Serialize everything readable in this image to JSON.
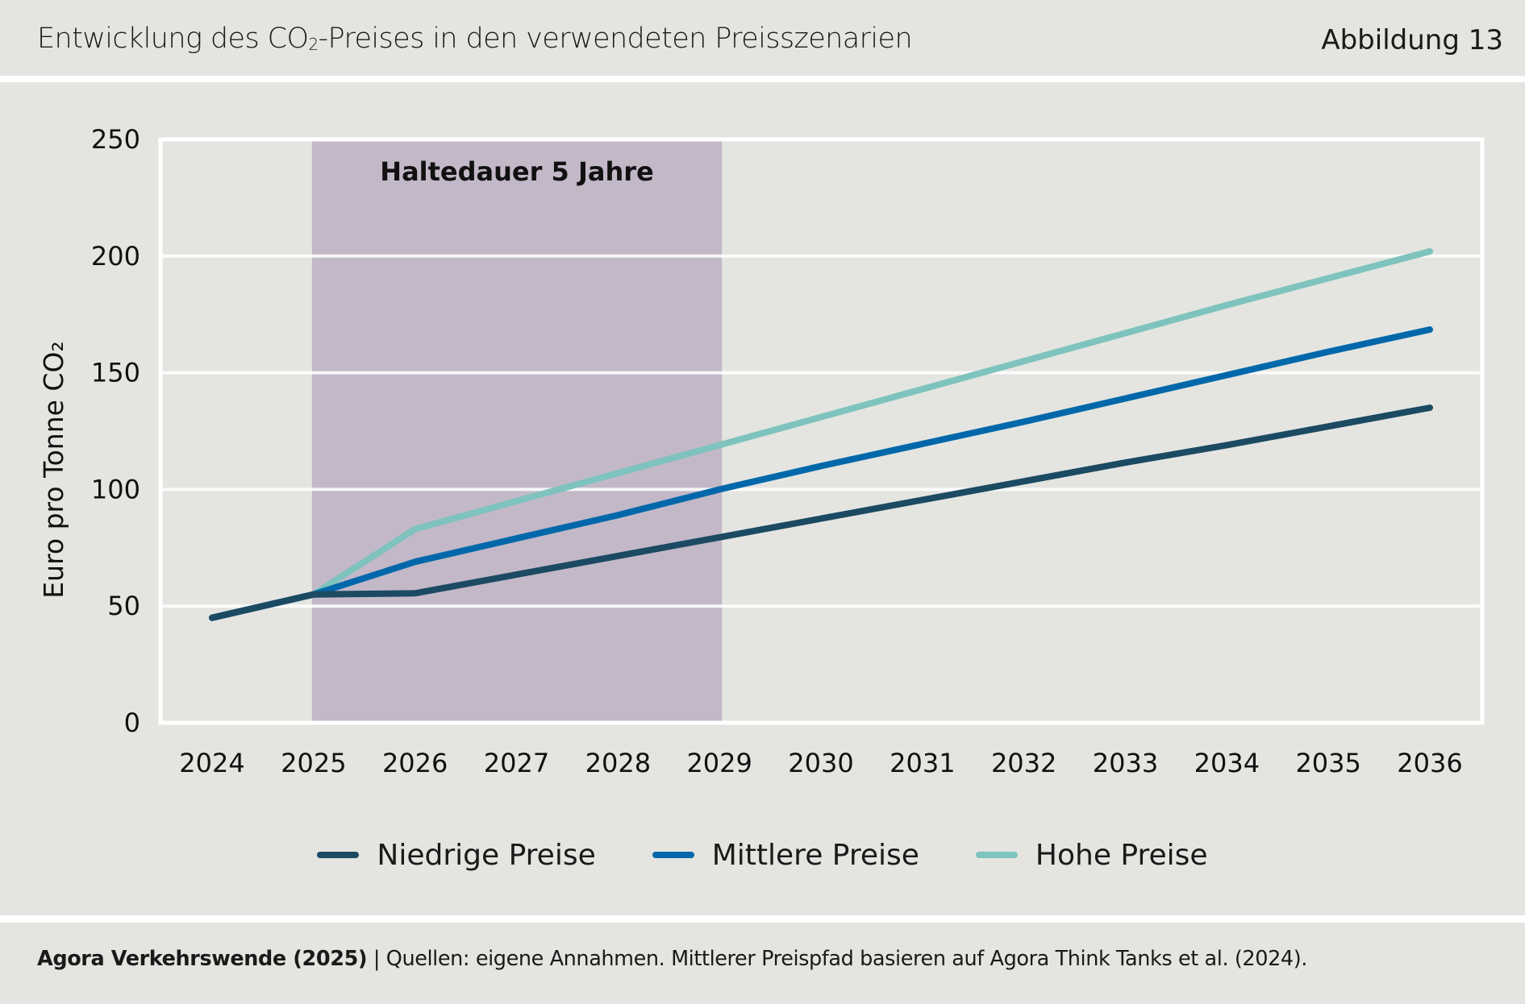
{
  "header": {
    "title_prefix": "Entwicklung des CO",
    "title_sub": "2",
    "title_suffix": "-Preises in den verwendeten Preisszenarien",
    "figure_label": "Abbildung 13"
  },
  "footer": {
    "source_bold": "Agora Verkehrswende (2025)",
    "separator": " | ",
    "source_text": "Quellen: eigene Annahmen. Mittlerer Preispfad basieren auf Agora Think Tanks et al. (2024)."
  },
  "chart_data": {
    "type": "line",
    "title": "Entwicklung des CO₂-Preises in den verwendeten Preisszenarien",
    "xlabel": "",
    "ylabel": "Euro pro Tonne CO₂",
    "x": [
      2024,
      2025,
      2026,
      2027,
      2028,
      2029,
      2030,
      2031,
      2032,
      2033,
      2034,
      2035,
      2036
    ],
    "x_tick_labels": [
      "2024",
      "2025",
      "2026",
      "2027",
      "2028",
      "2029",
      "2030",
      "2031",
      "2032",
      "2033",
      "2034",
      "2035",
      "2036"
    ],
    "ylim": [
      0,
      250
    ],
    "y_ticks": [
      0,
      50,
      100,
      150,
      200,
      250
    ],
    "y_tick_labels": [
      "0",
      "50",
      "100",
      "150",
      "200",
      "250"
    ],
    "grid": "horizontal",
    "legend_position": "bottom-center",
    "shaded_region": {
      "label": "Haltedauer 5 Jahre",
      "x_start": 2025,
      "x_end": 2029,
      "color": "#c3b8c8"
    },
    "series": [
      {
        "name": "Niedrige Preise",
        "color": "#1c4a63",
        "values": [
          45,
          55,
          55.5,
          63.5,
          71.5,
          79.5,
          87.5,
          95.5,
          103.5,
          111.5,
          119,
          127,
          135
        ]
      },
      {
        "name": "Mittlere Preise",
        "color": "#0068aa",
        "values": [
          45,
          55,
          69,
          79,
          89,
          100,
          110,
          119.5,
          129,
          139,
          149,
          159,
          168.5
        ]
      },
      {
        "name": "Hohe Preise",
        "color": "#7ec3bd",
        "values": [
          45,
          55,
          83,
          95,
          107,
          119,
          131,
          143,
          155,
          167,
          179,
          190.5,
          202
        ]
      }
    ]
  }
}
